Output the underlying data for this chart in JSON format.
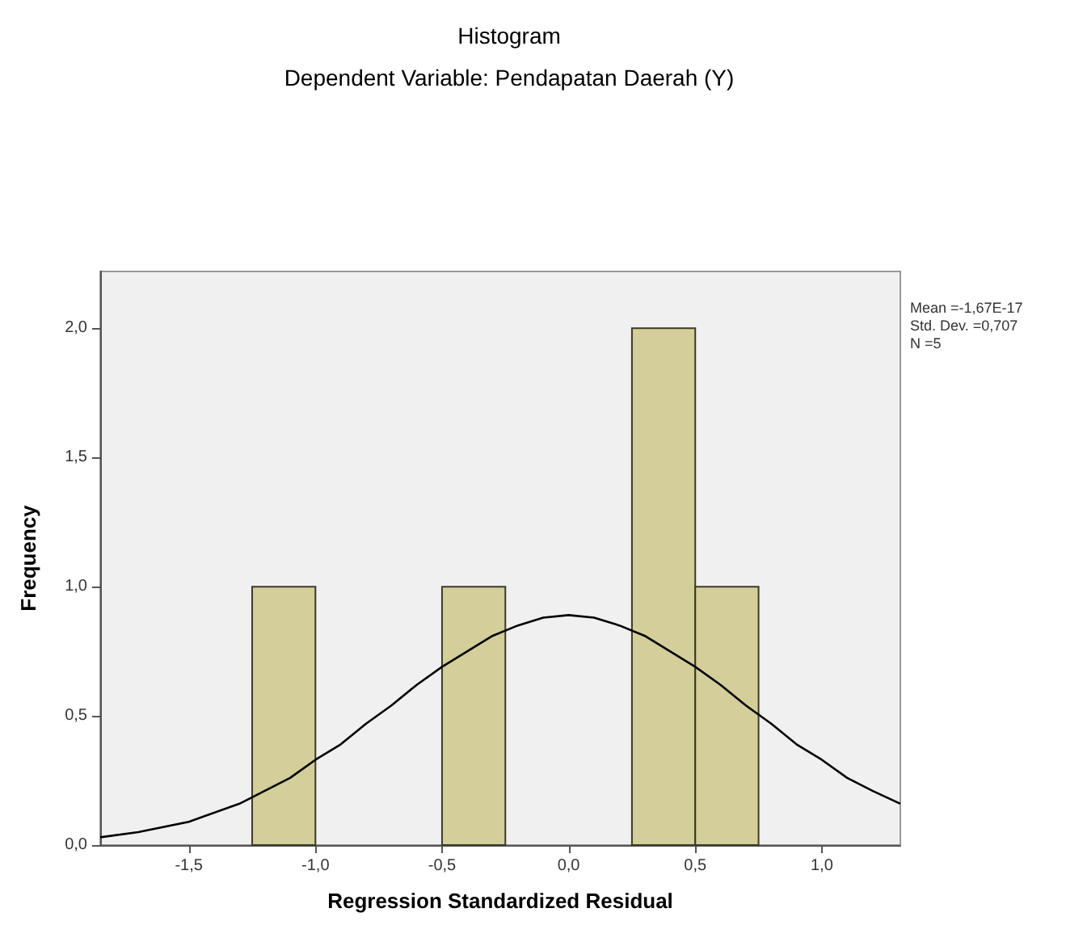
{
  "chart_data": {
    "type": "histogram",
    "title": "Histogram",
    "subtitle": "Dependent Variable: Pendapatan Daerah (Y)",
    "xlabel": "Regression Standardized Residual",
    "ylabel": "Frequency",
    "bins": [
      -1.25,
      -1.0,
      -0.75,
      -0.5,
      -0.25,
      0,
      0.25,
      0.5,
      0.75
    ],
    "values": [
      1,
      0,
      0,
      1,
      0,
      0,
      2,
      1
    ],
    "color": "#d3ce9a",
    "series": [
      {
        "type": "line",
        "color": "#000000",
        "x": [
          -1.85,
          -1.7,
          -1.5,
          -1.3,
          -1.1,
          -1.0,
          -0.9,
          -0.8,
          -0.7,
          -0.6,
          -0.5,
          -0.4,
          -0.3,
          -0.2,
          -0.1,
          0,
          0.1,
          0.2,
          0.3,
          0.4,
          0.5,
          0.6,
          0.7,
          0.8,
          0.9,
          1.0,
          1.1,
          1.2,
          1.31
        ],
        "values": [
          0.03,
          0.05,
          0.09,
          0.16,
          0.26,
          0.33,
          0.39,
          0.47,
          0.54,
          0.62,
          0.69,
          0.75,
          0.81,
          0.85,
          0.88,
          0.89,
          0.88,
          0.85,
          0.81,
          0.75,
          0.69,
          0.62,
          0.54,
          0.47,
          0.39,
          0.33,
          0.26,
          0.21,
          0.16
        ]
      }
    ],
    "xlim": [
      -1.85,
      1.31
    ],
    "xticks": [
      {
        "value": -1.5,
        "label": "-1,5"
      },
      {
        "value": -1.0,
        "label": "-1,0"
      },
      {
        "value": -0.5,
        "label": "-0,5"
      },
      {
        "value": 0,
        "label": "0,0"
      },
      {
        "value": 0.5,
        "label": "0,5"
      },
      {
        "value": 1.0,
        "label": "1,0"
      }
    ],
    "ylim": [
      0,
      2.22
    ],
    "yticks": [
      {
        "value": 0,
        "label": "0,0"
      },
      {
        "value": 0.5,
        "label": "0,5"
      },
      {
        "value": 1.0,
        "label": "1,0"
      },
      {
        "value": 1.5,
        "label": "1,5"
      },
      {
        "value": 2.0,
        "label": "2,0"
      }
    ],
    "annotations": [
      "Mean =-1,67E-17",
      "Std. Dev. =0,707",
      "N =5"
    ],
    "grid": false,
    "legend": false
  }
}
